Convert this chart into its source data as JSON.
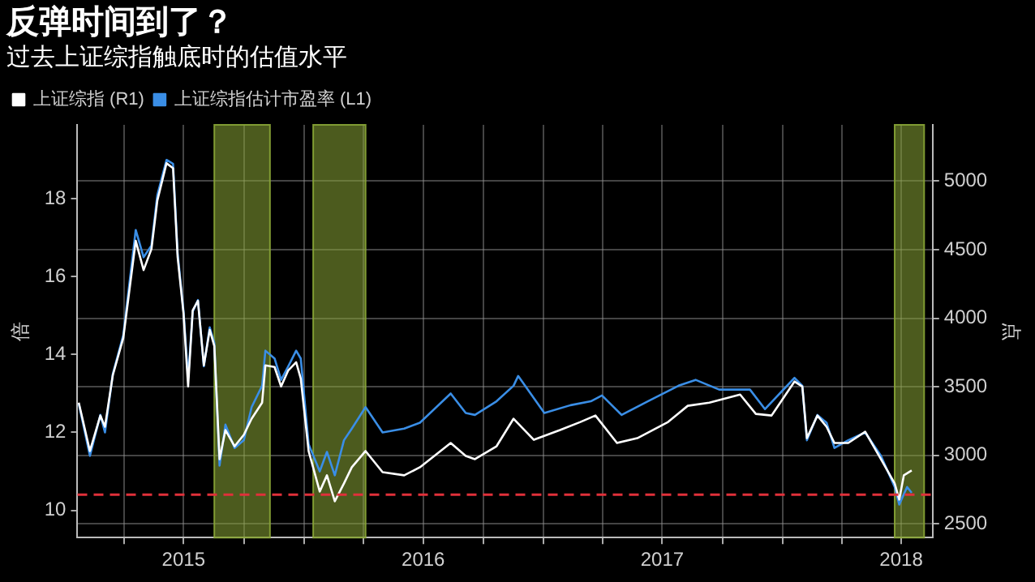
{
  "chart_data": {
    "type": "line",
    "title": "反弹时间到了？",
    "subtitle": "过去上证综指触底时的估值水平",
    "ylabel": "倍",
    "y2label": "点",
    "xlim": [
      "2015-01-20",
      "2018-08-18"
    ],
    "xticks": [
      {
        "value": "2015-04-01",
        "label": null
      },
      {
        "value": "2015-07-01",
        "label": "2015"
      },
      {
        "value": "2015-10-01",
        "label": null
      },
      {
        "value": "2016-01-01",
        "label": null
      },
      {
        "value": "2016-04-01",
        "label": null
      },
      {
        "value": "2016-07-01",
        "label": "2016"
      },
      {
        "value": "2016-10-01",
        "label": null
      },
      {
        "value": "2017-01-01",
        "label": null
      },
      {
        "value": "2017-04-01",
        "label": null
      },
      {
        "value": "2017-07-01",
        "label": "2017"
      },
      {
        "value": "2017-10-01",
        "label": null
      },
      {
        "value": "2018-01-01",
        "label": null
      },
      {
        "value": "2018-04-01",
        "label": null
      },
      {
        "value": "2018-07-01",
        "label": "2018"
      }
    ],
    "ylim": [
      9.3,
      19.9
    ],
    "yticks": [
      10,
      12,
      14,
      16,
      18
    ],
    "y2lim": [
      2400,
      5410
    ],
    "y2ticks": [
      2500,
      3000,
      3500,
      4000,
      4500,
      5000
    ],
    "series": [
      {
        "name": "上证综指 (R1)",
        "color": "#ffffff",
        "axis": "y2",
        "x": [
          "2015-01-22",
          "2015-02-08",
          "2015-02-24",
          "2015-03-03",
          "2015-03-15",
          "2015-03-31",
          "2015-04-19",
          "2015-05-01",
          "2015-05-13",
          "2015-05-22",
          "2015-06-05",
          "2015-06-15",
          "2015-06-22",
          "2015-07-01",
          "2015-07-08",
          "2015-07-15",
          "2015-07-23",
          "2015-08-01",
          "2015-08-10",
          "2015-08-17",
          "2015-08-25",
          "2015-09-03",
          "2015-09-17",
          "2015-10-01",
          "2015-10-13",
          "2015-10-29",
          "2015-11-03",
          "2015-11-17",
          "2015-11-27",
          "2015-12-08",
          "2015-12-20",
          "2015-12-27",
          "2016-01-08",
          "2016-01-25",
          "2016-02-05",
          "2016-02-17",
          "2016-03-02",
          "2016-03-14",
          "2016-04-04",
          "2016-04-30",
          "2016-06-02",
          "2016-06-26",
          "2016-08-12",
          "2016-09-04",
          "2016-09-18",
          "2016-10-21",
          "2016-11-16",
          "2016-12-17",
          "2017-01-26",
          "2017-02-26",
          "2017-03-21",
          "2017-04-23",
          "2017-05-24",
          "2017-07-10",
          "2017-08-09",
          "2017-09-11",
          "2017-10-28",
          "2017-11-21",
          "2017-12-15",
          "2018-01-19",
          "2018-01-31",
          "2018-02-07",
          "2018-02-23",
          "2018-03-09",
          "2018-03-21",
          "2018-04-11",
          "2018-05-07",
          "2018-05-31",
          "2018-06-21",
          "2018-06-28",
          "2018-07-05",
          "2018-07-17"
        ],
        "values": [
          3384,
          3031,
          3290,
          3208,
          3585,
          3856,
          4564,
          4351,
          4505,
          4858,
          5130,
          5094,
          4446,
          4033,
          3502,
          4057,
          4127,
          3656,
          3915,
          3797,
          2972,
          3184,
          3066,
          3149,
          3267,
          3384,
          3656,
          3644,
          3502,
          3620,
          3679,
          3561,
          3031,
          2736,
          2854,
          2665,
          2795,
          2913,
          3031,
          2877,
          2854,
          2913,
          3090,
          2995,
          2972,
          3066,
          3267,
          3113,
          3184,
          3243,
          3290,
          3090,
          3125,
          3243,
          3361,
          3384,
          3443,
          3302,
          3290,
          3538,
          3502,
          3125,
          3290,
          3208,
          3090,
          3090,
          3172,
          2972,
          2795,
          2677,
          2854,
          2890
        ]
      },
      {
        "name": "上证综指估计市盈率 (L1)",
        "color": "#3a8ee6",
        "axis": "y",
        "x": [
          "2015-01-22",
          "2015-02-08",
          "2015-02-24",
          "2015-03-03",
          "2015-03-15",
          "2015-03-31",
          "2015-04-19",
          "2015-05-01",
          "2015-05-13",
          "2015-05-22",
          "2015-06-05",
          "2015-06-15",
          "2015-06-22",
          "2015-07-01",
          "2015-07-08",
          "2015-07-15",
          "2015-07-23",
          "2015-08-01",
          "2015-08-10",
          "2015-08-17",
          "2015-08-25",
          "2015-09-03",
          "2015-09-17",
          "2015-10-01",
          "2015-10-13",
          "2015-10-29",
          "2015-11-03",
          "2015-11-17",
          "2015-11-27",
          "2015-12-08",
          "2015-12-20",
          "2015-12-27",
          "2016-01-08",
          "2016-01-25",
          "2016-02-05",
          "2016-02-17",
          "2016-03-02",
          "2016-03-14",
          "2016-04-04",
          "2016-04-30",
          "2016-06-02",
          "2016-06-26",
          "2016-08-12",
          "2016-09-04",
          "2016-09-18",
          "2016-10-21",
          "2016-11-16",
          "2016-11-23",
          "2017-01-02",
          "2017-02-11",
          "2017-03-14",
          "2017-03-31",
          "2017-04-30",
          "2017-06-09",
          "2017-07-26",
          "2017-08-21",
          "2017-09-26",
          "2017-11-12",
          "2017-12-05",
          "2018-01-19",
          "2018-01-31",
          "2018-02-07",
          "2018-02-23",
          "2018-03-09",
          "2018-03-21",
          "2018-04-11",
          "2018-05-07",
          "2018-05-31",
          "2018-06-21",
          "2018-06-28",
          "2018-07-10",
          "2018-07-17"
        ],
        "values": [
          12.74,
          11.4,
          12.45,
          12.0,
          13.5,
          14.5,
          17.2,
          16.5,
          16.8,
          18.1,
          19.0,
          18.9,
          16.6,
          15.1,
          13.4,
          15.1,
          15.4,
          13.7,
          14.7,
          14.3,
          11.15,
          12.2,
          11.6,
          11.8,
          12.65,
          13.2,
          14.1,
          13.9,
          13.35,
          13.7,
          14.1,
          13.9,
          11.7,
          11.0,
          11.5,
          10.9,
          11.8,
          12.1,
          12.65,
          12.0,
          12.1,
          12.25,
          13.0,
          12.5,
          12.45,
          12.8,
          13.2,
          13.45,
          12.5,
          12.7,
          12.8,
          12.95,
          12.45,
          12.8,
          13.2,
          13.35,
          13.1,
          13.1,
          12.6,
          13.4,
          13.2,
          11.8,
          12.45,
          12.25,
          11.6,
          11.8,
          12.0,
          11.4,
          10.6,
          10.15,
          10.6,
          10.45
        ]
      }
    ],
    "ref_lines": [
      {
        "axis": "y",
        "value": 10.4,
        "color": "#e0303a",
        "line_style": "dashed"
      }
    ],
    "bands": [
      {
        "axis": "x",
        "from": "2015-08-17",
        "to": "2015-11-10",
        "color": "#8aa636"
      },
      {
        "axis": "x",
        "from": "2016-01-15",
        "to": "2016-04-04",
        "color": "#8aa636"
      },
      {
        "axis": "x",
        "from": "2018-06-21",
        "to": "2018-08-05",
        "color": "#8aa636"
      }
    ],
    "grid": true,
    "legend": "top left"
  }
}
